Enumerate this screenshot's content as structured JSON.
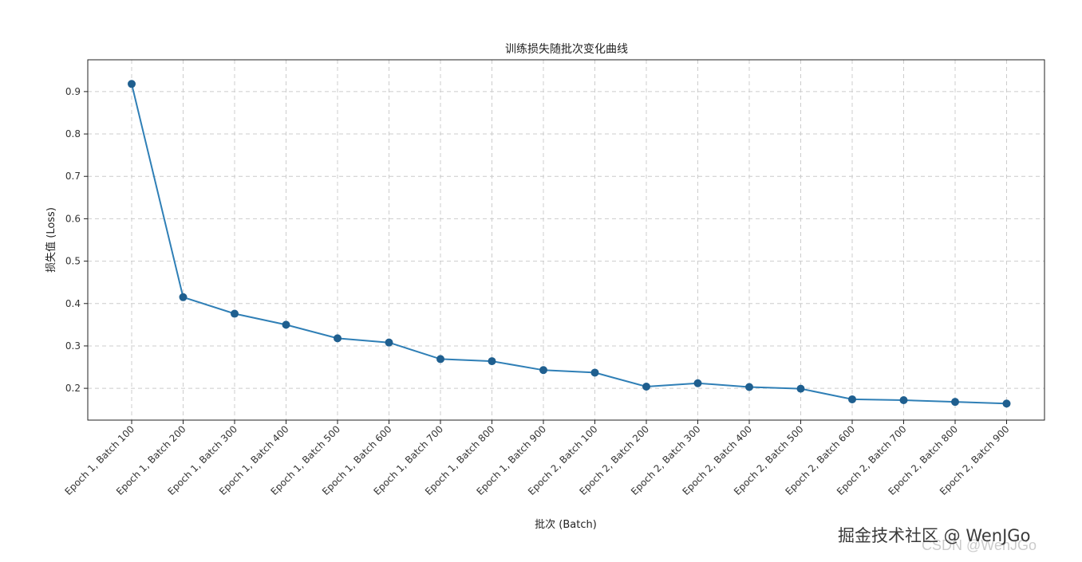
{
  "chart_data": {
    "type": "line",
    "title": "训练损失随批次变化曲线",
    "xlabel": "批次 (Batch)",
    "ylabel": "损失值 (Loss)",
    "categories": [
      "Epoch 1, Batch 100",
      "Epoch 1, Batch 200",
      "Epoch 1, Batch 300",
      "Epoch 1, Batch 400",
      "Epoch 1, Batch 500",
      "Epoch 1, Batch 600",
      "Epoch 1, Batch 700",
      "Epoch 1, Batch 800",
      "Epoch 1, Batch 900",
      "Epoch 2, Batch 100",
      "Epoch 2, Batch 200",
      "Epoch 2, Batch 300",
      "Epoch 2, Batch 400",
      "Epoch 2, Batch 500",
      "Epoch 2, Batch 600",
      "Epoch 2, Batch 700",
      "Epoch 2, Batch 800",
      "Epoch 2, Batch 900"
    ],
    "series": [
      {
        "values": [
          0.918,
          0.415,
          0.376,
          0.35,
          0.318,
          0.308,
          0.269,
          0.264,
          0.243,
          0.237,
          0.204,
          0.212,
          0.203,
          0.199,
          0.174,
          0.172,
          0.168,
          0.164
        ],
        "color": "#2f7fb6",
        "marker": "circle"
      }
    ],
    "yticks": [
      0.2,
      0.3,
      0.4,
      0.5,
      0.6,
      0.7,
      0.8,
      0.9
    ],
    "ytick_labels": [
      "0.2",
      "0.3",
      "0.4",
      "0.5",
      "0.6",
      "0.7",
      "0.8",
      "0.9"
    ],
    "ylim": [
      0.125,
      0.975
    ],
    "grid": true,
    "legend": "none"
  },
  "watermark": {
    "primary": "掘金技术社区 @ WenJGo",
    "secondary": "CSDN @WenJGo"
  }
}
